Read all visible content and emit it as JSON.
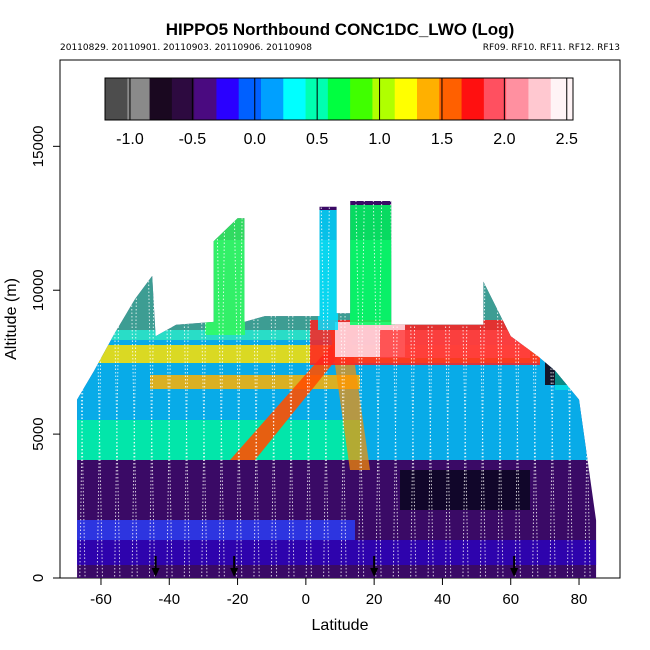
{
  "chart_data": {
    "type": "heatmap",
    "title": "HIPPO5 Northbound CONC1DC_LWO (Log)",
    "subtitle_left": "20110829. 20110901. 20110903. 20110906. 20110908",
    "subtitle_right": "RF09. RF10. RF11. RF12. RF13",
    "xlabel": "Latitude",
    "ylabel": "Altitude (m)",
    "xlim": [
      -72,
      92
    ],
    "ylim": [
      0,
      18000
    ],
    "xticks": [
      -60,
      -40,
      -20,
      0,
      20,
      40,
      60,
      80
    ],
    "xtick_labels": [
      "-60",
      "-40",
      "-20",
      "0",
      "20",
      "40",
      "60",
      "80"
    ],
    "yticks": [
      0,
      5000,
      10000,
      15000
    ],
    "ytick_labels": [
      "0",
      "5000",
      "10000",
      "15000"
    ],
    "colorbar": {
      "range": [
        -1.2,
        2.55
      ],
      "ticks": [
        -1.0,
        -0.5,
        0.0,
        0.5,
        1.0,
        1.5,
        2.0,
        2.5
      ],
      "tick_labels": [
        "-1.0",
        "-0.5",
        "0.0",
        "0.5",
        "1.0",
        "1.5",
        "2.0",
        "2.5"
      ],
      "colors": [
        "#4d4d4d",
        "#8a8a8a",
        "#1a0820",
        "#2d0a40",
        "#4a0a80",
        "#2a00ff",
        "#0060ff",
        "#00a0ff",
        "#00ffff",
        "#00ffb0",
        "#00ff40",
        "#40ff00",
        "#b0ff00",
        "#ffff00",
        "#ffb000",
        "#ff6000",
        "#ff1010",
        "#ff5060",
        "#ff90a0",
        "#ffc8d0",
        "#fff4f6"
      ]
    },
    "profile_markers": [
      -44,
      -21,
      20,
      61
    ],
    "ceiling_points": [
      [
        -67,
        6200
      ],
      [
        -62,
        7200
      ],
      [
        -56,
        8500
      ],
      [
        -50,
        9700
      ],
      [
        -45,
        10500
      ],
      [
        -44,
        8400
      ],
      [
        -38,
        8800
      ],
      [
        -27,
        8900
      ],
      [
        -27,
        11700
      ],
      [
        -20,
        12500
      ],
      [
        -18,
        12500
      ],
      [
        -18,
        8900
      ],
      [
        -12,
        9100
      ],
      [
        4,
        9100
      ],
      [
        4,
        12900
      ],
      [
        9,
        12900
      ],
      [
        9,
        9200
      ],
      [
        13,
        9200
      ],
      [
        13,
        13100
      ],
      [
        25,
        13100
      ],
      [
        25,
        8800
      ],
      [
        52,
        8800
      ],
      [
        52,
        10300
      ],
      [
        60,
        8400
      ],
      [
        68,
        7700
      ],
      [
        73,
        7200
      ],
      [
        80,
        6200
      ],
      [
        85,
        2000
      ]
    ],
    "scale": "log10"
  }
}
